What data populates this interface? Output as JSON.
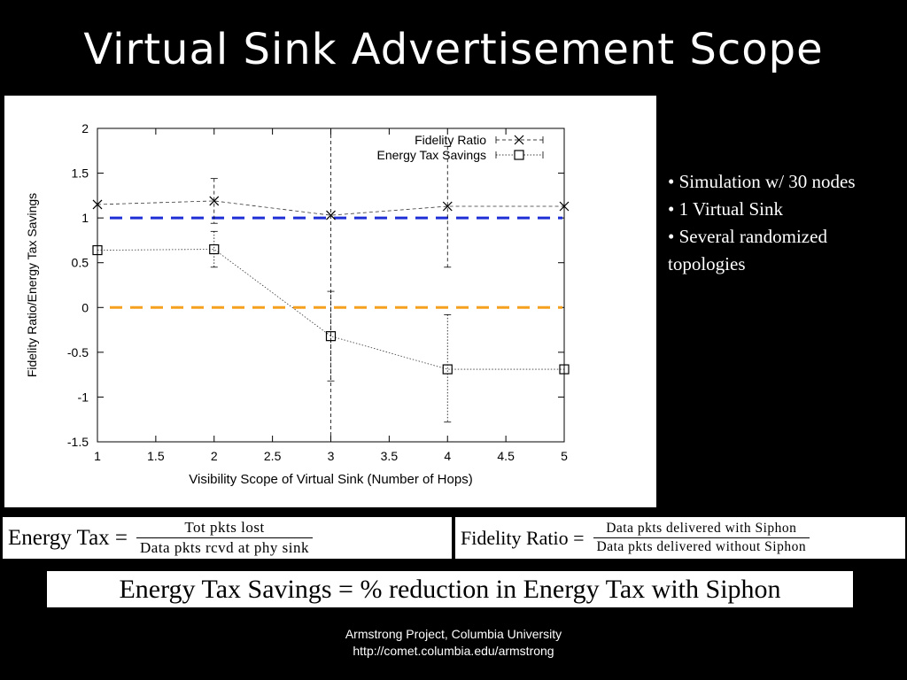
{
  "slide": {
    "title": "Virtual Sink Advertisement Scope",
    "bullets": [
      "• Simulation w/ 30 nodes",
      "• 1 Virtual Sink",
      "• Several randomized topologies"
    ],
    "footer_line1": "Armstrong Project, Columbia University",
    "footer_line2": "http://comet.columbia.edu/armstrong"
  },
  "formulas": {
    "energy_tax": {
      "lhs": "Energy Tax =",
      "numerator": "Tot pkts lost",
      "denominator": "Data pkts rcvd at phy sink"
    },
    "fidelity_ratio": {
      "lhs": "Fidelity Ratio =",
      "numerator": "Data pkts delivered with Siphon",
      "denominator": "Data pkts delivered without Siphon"
    },
    "energy_tax_savings": "Energy Tax Savings = % reduction in Energy Tax with Siphon"
  },
  "chart_data": {
    "type": "line",
    "title": "",
    "xlabel": "Visibility Scope of Virtual Sink (Number of Hops)",
    "ylabel": "Fidelity Ratio/Energy Tax Savings",
    "xlim": [
      1,
      5
    ],
    "ylim": [
      -1.5,
      2
    ],
    "x_ticks": [
      "1",
      "1.5",
      "2",
      "2.5",
      "3",
      "3.5",
      "4",
      "4.5",
      "5"
    ],
    "y_ticks": [
      "-1.5",
      "-1",
      "-0.5",
      "0",
      "0.5",
      "1",
      "1.5",
      "2"
    ],
    "legend_position": "top-right",
    "series": [
      {
        "name": "Fidelity Ratio",
        "marker": "x",
        "color": "#000000",
        "x": [
          1,
          2,
          3,
          4,
          5
        ],
        "y": [
          1.15,
          1.19,
          1.03,
          1.13,
          1.13
        ],
        "err_low": [
          1.15,
          0.94,
          -1.5,
          0.45,
          1.13
        ],
        "err_high": [
          1.15,
          1.44,
          2.0,
          1.8,
          1.13
        ]
      },
      {
        "name": "Energy Tax Savings",
        "marker": "square",
        "color": "#000000",
        "x": [
          1,
          2,
          3,
          4,
          5
        ],
        "y": [
          0.64,
          0.65,
          -0.32,
          -0.69,
          -0.69
        ],
        "err_low": [
          0.64,
          0.45,
          -0.82,
          -1.28,
          -0.69
        ],
        "err_high": [
          0.64,
          0.85,
          0.18,
          -0.08,
          -0.69
        ]
      }
    ],
    "reference_lines": [
      {
        "y": 1,
        "color": "#1f2fd6"
      },
      {
        "y": 0,
        "color": "#f5a01e"
      }
    ]
  }
}
